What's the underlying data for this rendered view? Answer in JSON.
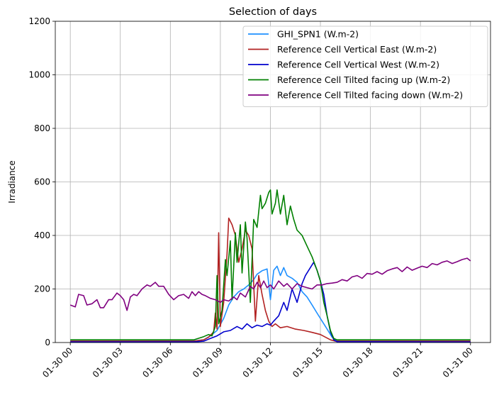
{
  "chart_data": {
    "type": "line",
    "title": "Selection of days",
    "xlabel": "",
    "ylabel": "Irradiance",
    "ylim": [
      0,
      1200
    ],
    "yticks": [
      0,
      200,
      400,
      600,
      800,
      1000,
      1200
    ],
    "xlim_hours": [
      -0.9,
      25.2
    ],
    "xticks": [
      {
        "hour": 0,
        "label": "01-30 00"
      },
      {
        "hour": 3,
        "label": "01-30 03"
      },
      {
        "hour": 6,
        "label": "01-30 06"
      },
      {
        "hour": 9,
        "label": "01-30 09"
      },
      {
        "hour": 12,
        "label": "01-30 12"
      },
      {
        "hour": 15,
        "label": "01-30 15"
      },
      {
        "hour": 18,
        "label": "01-30 18"
      },
      {
        "hour": 21,
        "label": "01-30 21"
      },
      {
        "hour": 24,
        "label": "01-31 00"
      }
    ],
    "grid": true,
    "legend_position": "upper-right",
    "x_unit": "hours since 01-30 00:00",
    "series": [
      {
        "name": "GHI_SPN1 (W.m-2)",
        "color": "#1e90ff",
        "points": [
          [
            0,
            5
          ],
          [
            7.4,
            6
          ],
          [
            8.0,
            10
          ],
          [
            8.4,
            25
          ],
          [
            8.8,
            45
          ],
          [
            9.2,
            90
          ],
          [
            9.5,
            140
          ],
          [
            9.8,
            170
          ],
          [
            10.1,
            190
          ],
          [
            10.4,
            200
          ],
          [
            10.7,
            215
          ],
          [
            11.0,
            235
          ],
          [
            11.2,
            255
          ],
          [
            11.5,
            268
          ],
          [
            11.8,
            275
          ],
          [
            12.0,
            160
          ],
          [
            12.2,
            270
          ],
          [
            12.4,
            285
          ],
          [
            12.6,
            250
          ],
          [
            12.8,
            280
          ],
          [
            13.0,
            250
          ],
          [
            13.3,
            240
          ],
          [
            13.6,
            225
          ],
          [
            13.9,
            190
          ],
          [
            14.2,
            170
          ],
          [
            14.5,
            140
          ],
          [
            14.8,
            110
          ],
          [
            15.1,
            80
          ],
          [
            15.4,
            50
          ],
          [
            15.7,
            20
          ],
          [
            16.0,
            6
          ],
          [
            16.2,
            5
          ],
          [
            24,
            5
          ]
        ]
      },
      {
        "name": "Reference Cell Vertical East (W.m-2)",
        "color": "#b22222",
        "points": [
          [
            0,
            5
          ],
          [
            7.4,
            5
          ],
          [
            8.0,
            10
          ],
          [
            8.3,
            20
          ],
          [
            8.6,
            40
          ],
          [
            8.7,
            110
          ],
          [
            8.8,
            50
          ],
          [
            8.9,
            410
          ],
          [
            9.0,
            60
          ],
          [
            9.2,
            150
          ],
          [
            9.4,
            330
          ],
          [
            9.5,
            465
          ],
          [
            9.7,
            440
          ],
          [
            9.9,
            400
          ],
          [
            10.1,
            300
          ],
          [
            10.3,
            350
          ],
          [
            10.5,
            420
          ],
          [
            10.7,
            400
          ],
          [
            10.9,
            350
          ],
          [
            11.1,
            80
          ],
          [
            11.3,
            250
          ],
          [
            11.5,
            180
          ],
          [
            11.7,
            120
          ],
          [
            11.9,
            80
          ],
          [
            12.1,
            60
          ],
          [
            12.3,
            70
          ],
          [
            12.6,
            55
          ],
          [
            13.0,
            60
          ],
          [
            13.5,
            50
          ],
          [
            14.0,
            45
          ],
          [
            14.5,
            38
          ],
          [
            15.0,
            30
          ],
          [
            15.3,
            20
          ],
          [
            15.6,
            10
          ],
          [
            15.9,
            5
          ],
          [
            24,
            5
          ]
        ]
      },
      {
        "name": "Reference Cell Vertical West (W.m-2)",
        "color": "#0000cd",
        "points": [
          [
            0,
            2
          ],
          [
            7.4,
            2
          ],
          [
            8.0,
            5
          ],
          [
            8.4,
            15
          ],
          [
            8.8,
            25
          ],
          [
            9.2,
            40
          ],
          [
            9.6,
            45
          ],
          [
            10.0,
            60
          ],
          [
            10.3,
            50
          ],
          [
            10.6,
            70
          ],
          [
            10.9,
            55
          ],
          [
            11.2,
            65
          ],
          [
            11.5,
            60
          ],
          [
            11.8,
            70
          ],
          [
            12.0,
            65
          ],
          [
            12.2,
            80
          ],
          [
            12.5,
            100
          ],
          [
            12.8,
            150
          ],
          [
            13.0,
            120
          ],
          [
            13.3,
            200
          ],
          [
            13.6,
            150
          ],
          [
            13.9,
            220
          ],
          [
            14.1,
            250
          ],
          [
            14.4,
            280
          ],
          [
            14.6,
            300
          ],
          [
            14.8,
            270
          ],
          [
            15.0,
            230
          ],
          [
            15.2,
            180
          ],
          [
            15.4,
            100
          ],
          [
            15.6,
            40
          ],
          [
            15.8,
            10
          ],
          [
            16.0,
            3
          ],
          [
            24,
            2
          ]
        ]
      },
      {
        "name": "Reference Cell Tilted facing up (W.m-2)",
        "color": "#008000",
        "points": [
          [
            0,
            10
          ],
          [
            7.4,
            10
          ],
          [
            8.0,
            22
          ],
          [
            8.3,
            30
          ],
          [
            8.5,
            25
          ],
          [
            8.7,
            60
          ],
          [
            8.8,
            250
          ],
          [
            8.9,
            70
          ],
          [
            9.1,
            120
          ],
          [
            9.3,
            310
          ],
          [
            9.4,
            250
          ],
          [
            9.6,
            380
          ],
          [
            9.7,
            160
          ],
          [
            9.9,
            410
          ],
          [
            10.0,
            300
          ],
          [
            10.2,
            440
          ],
          [
            10.3,
            260
          ],
          [
            10.5,
            450
          ],
          [
            10.6,
            390
          ],
          [
            10.8,
            150
          ],
          [
            11.0,
            460
          ],
          [
            11.2,
            430
          ],
          [
            11.4,
            550
          ],
          [
            11.5,
            500
          ],
          [
            11.7,
            520
          ],
          [
            11.9,
            560
          ],
          [
            12.0,
            570
          ],
          [
            12.1,
            480
          ],
          [
            12.3,
            520
          ],
          [
            12.4,
            570
          ],
          [
            12.6,
            480
          ],
          [
            12.8,
            550
          ],
          [
            13.0,
            440
          ],
          [
            13.2,
            510
          ],
          [
            13.4,
            460
          ],
          [
            13.6,
            420
          ],
          [
            13.9,
            400
          ],
          [
            14.2,
            360
          ],
          [
            14.5,
            320
          ],
          [
            14.8,
            270
          ],
          [
            15.0,
            230
          ],
          [
            15.2,
            150
          ],
          [
            15.4,
            100
          ],
          [
            15.6,
            45
          ],
          [
            15.8,
            15
          ],
          [
            16.0,
            10
          ],
          [
            24,
            10
          ]
        ]
      },
      {
        "name": "Reference Cell Tilted facing down (W.m-2)",
        "color": "#800080",
        "points": [
          [
            0,
            140
          ],
          [
            0.3,
            133
          ],
          [
            0.5,
            180
          ],
          [
            0.8,
            175
          ],
          [
            1.0,
            140
          ],
          [
            1.3,
            145
          ],
          [
            1.6,
            160
          ],
          [
            1.8,
            130
          ],
          [
            2.0,
            130
          ],
          [
            2.3,
            160
          ],
          [
            2.5,
            160
          ],
          [
            2.8,
            185
          ],
          [
            3.0,
            175
          ],
          [
            3.2,
            160
          ],
          [
            3.4,
            120
          ],
          [
            3.6,
            170
          ],
          [
            3.8,
            180
          ],
          [
            4.0,
            175
          ],
          [
            4.3,
            200
          ],
          [
            4.6,
            215
          ],
          [
            4.8,
            210
          ],
          [
            5.1,
            225
          ],
          [
            5.3,
            210
          ],
          [
            5.6,
            210
          ],
          [
            5.9,
            180
          ],
          [
            6.2,
            160
          ],
          [
            6.5,
            175
          ],
          [
            6.8,
            180
          ],
          [
            7.1,
            165
          ],
          [
            7.3,
            190
          ],
          [
            7.5,
            175
          ],
          [
            7.7,
            190
          ],
          [
            7.9,
            180
          ],
          [
            8.1,
            175
          ],
          [
            8.4,
            165
          ],
          [
            8.7,
            160
          ],
          [
            9.0,
            150
          ],
          [
            9.2,
            160
          ],
          [
            9.5,
            155
          ],
          [
            9.8,
            170
          ],
          [
            10.0,
            160
          ],
          [
            10.2,
            185
          ],
          [
            10.5,
            170
          ],
          [
            10.8,
            210
          ],
          [
            11.0,
            200
          ],
          [
            11.2,
            225
          ],
          [
            11.4,
            205
          ],
          [
            11.6,
            230
          ],
          [
            11.8,
            205
          ],
          [
            12.0,
            215
          ],
          [
            12.2,
            200
          ],
          [
            12.5,
            230
          ],
          [
            12.8,
            210
          ],
          [
            13.0,
            220
          ],
          [
            13.3,
            200
          ],
          [
            13.6,
            220
          ],
          [
            13.9,
            210
          ],
          [
            14.2,
            205
          ],
          [
            14.5,
            200
          ],
          [
            14.8,
            215
          ],
          [
            15.1,
            215
          ],
          [
            15.4,
            220
          ],
          [
            15.7,
            222
          ],
          [
            16.0,
            225
          ],
          [
            16.3,
            235
          ],
          [
            16.6,
            230
          ],
          [
            16.9,
            245
          ],
          [
            17.2,
            250
          ],
          [
            17.5,
            240
          ],
          [
            17.8,
            258
          ],
          [
            18.1,
            255
          ],
          [
            18.4,
            265
          ],
          [
            18.7,
            255
          ],
          [
            19.0,
            268
          ],
          [
            19.3,
            275
          ],
          [
            19.6,
            280
          ],
          [
            19.9,
            265
          ],
          [
            20.2,
            282
          ],
          [
            20.5,
            270
          ],
          [
            20.8,
            278
          ],
          [
            21.1,
            285
          ],
          [
            21.4,
            280
          ],
          [
            21.7,
            295
          ],
          [
            22.0,
            290
          ],
          [
            22.3,
            300
          ],
          [
            22.6,
            305
          ],
          [
            22.9,
            295
          ],
          [
            23.2,
            302
          ],
          [
            23.5,
            310
          ],
          [
            23.8,
            315
          ],
          [
            24.0,
            305
          ]
        ]
      }
    ]
  }
}
